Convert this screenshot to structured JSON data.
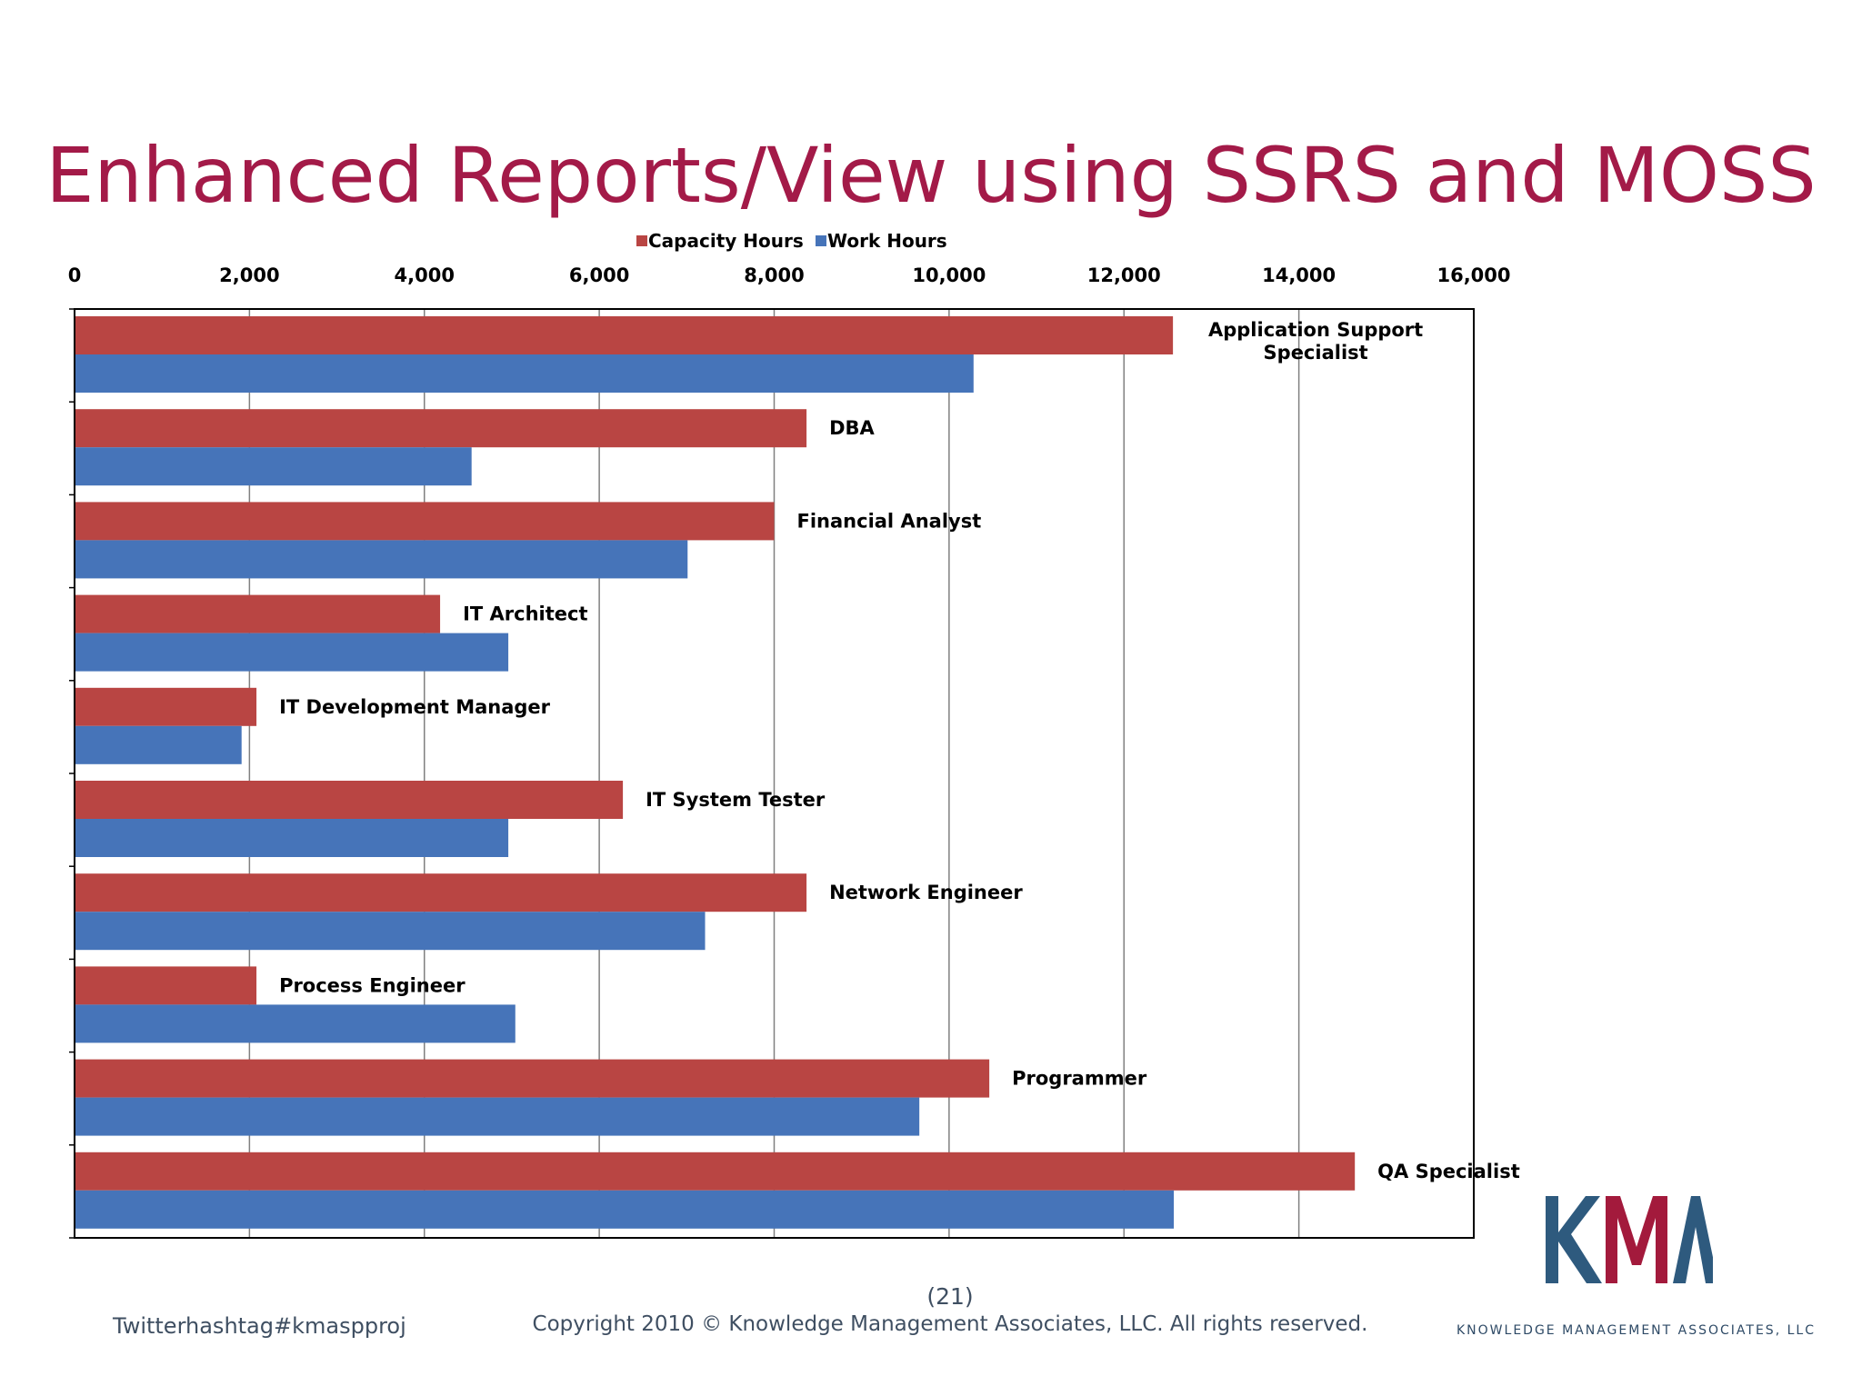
{
  "slide": {
    "title": "Enhanced Reports/View using SSRS and MOSS",
    "footer_hashtag": "Twitterhashtag#kmaspproj",
    "page_number": "(21)",
    "copyright": "Copyright 2010 © Knowledge Management Associates, LLC.  All rights reserved."
  },
  "logo": {
    "letters": "KMA",
    "caption": "KNOWLEDGE MANAGEMENT ASSOCIATES, LLC",
    "colors": {
      "k": "#2e5a7e",
      "m": "#a31a3c",
      "a": "#2e5a7e"
    }
  },
  "colors": {
    "capacity": "#b94543",
    "work": "#4674b9",
    "title": "#a31a48"
  },
  "chart_data": {
    "type": "bar",
    "orientation": "horizontal",
    "categories": [
      [
        "Application Support",
        "Specialist"
      ],
      [
        "DBA"
      ],
      [
        "Financial Analyst"
      ],
      [
        "IT Architect"
      ],
      [
        "IT Development Manager"
      ],
      [
        "IT System Tester"
      ],
      [
        "Network Engineer"
      ],
      [
        "Process Engineer"
      ],
      [
        "Programmer"
      ],
      [
        "QA Specialist"
      ]
    ],
    "series": [
      {
        "name": "Capacity Hours",
        "values": [
          12560,
          8370,
          8000,
          4180,
          2080,
          6270,
          8370,
          2080,
          10460,
          14640
        ]
      },
      {
        "name": "Work Hours",
        "values": [
          10280,
          4540,
          7010,
          4960,
          1910,
          4960,
          7210,
          5040,
          9660,
          12570
        ]
      }
    ],
    "xlim": [
      0,
      16000
    ],
    "xticks": [
      "0",
      "2,000",
      "4,000",
      "6,000",
      "8,000",
      "10,000",
      "12,000",
      "14,000",
      "16,000"
    ],
    "xtick_values": [
      0,
      2000,
      4000,
      6000,
      8000,
      10000,
      12000,
      14000,
      16000
    ],
    "x_axis_position": "top",
    "grid": true,
    "legend_position": "top"
  }
}
